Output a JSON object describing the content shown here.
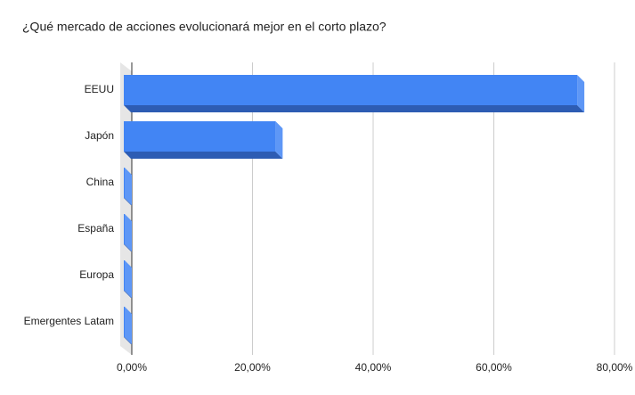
{
  "chart_data": {
    "type": "bar3d",
    "title": "¿Qué mercado de acciones evolucionará mejor en el corto plazo?",
    "categories": [
      "EEUU",
      "Japón",
      "China",
      "España",
      "Europa",
      "Emergentes Latam"
    ],
    "values": [
      75,
      25,
      0,
      0,
      0,
      0
    ],
    "color": "#4285f4",
    "xlim": [
      0,
      80
    ],
    "xticks": [
      {
        "value": 0,
        "label": "0,00%"
      },
      {
        "value": 20,
        "label": "20,00%"
      },
      {
        "value": 40,
        "label": "40,00%"
      },
      {
        "value": 60,
        "label": "60,00%"
      },
      {
        "value": 80,
        "label": "80,00%"
      }
    ],
    "grid": true
  }
}
